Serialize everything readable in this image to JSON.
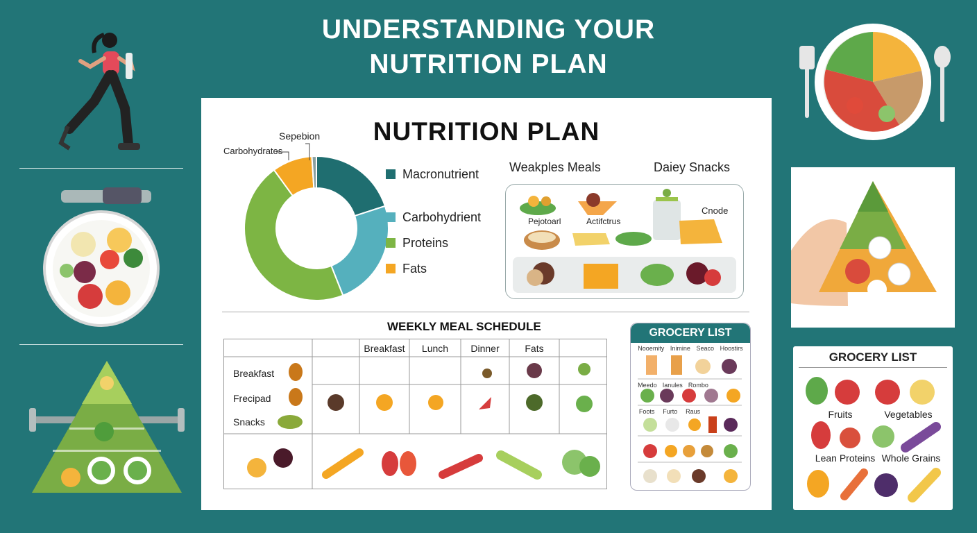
{
  "page": {
    "title_line1": "UNDERSTANDING YOUR",
    "title_line2": "NUTRITION PLAN"
  },
  "board": {
    "title": "NUTRITION PLAN",
    "donut_labels": {
      "top": "Sepebion",
      "left": "Carbohydrates"
    },
    "legend": [
      {
        "label": "Macronutrient",
        "color": "#1f6e70"
      },
      {
        "label": "Carbohydrient",
        "color": "#55b0bd"
      },
      {
        "label": "Proteins",
        "color": "#7db544"
      },
      {
        "label": "Fats",
        "color": "#f4a623"
      }
    ],
    "meals_heading_left": "Weakples Meals",
    "meals_heading_right": "Daiey Snacks",
    "meal_captions": {
      "a": "Pejotoarl",
      "b": "Actifctrus",
      "c": "Cnode"
    },
    "schedule": {
      "title": "WEEKLY MEAL SCHEDULE",
      "columns": [
        "",
        "Breakfast",
        "Lunch",
        "Dinner",
        "Fats",
        ""
      ],
      "rows": [
        "Breakfast",
        "Frecipad",
        "Snacks"
      ]
    },
    "grocery_mini": {
      "title": "GROCERY LIST",
      "row_captions": [
        [
          "Nooemity",
          "Inimine",
          "Seaco",
          "Hoostirs"
        ],
        [
          "Meedo",
          "Ianules",
          "Rombo"
        ],
        [
          "Foots",
          "Furto",
          "Raus"
        ]
      ]
    }
  },
  "right_panel": {
    "grocery_title": "GROCERY LIST",
    "labels": [
      "Fruits",
      "Vegetables",
      "Lean Proteins",
      "Whole Grains"
    ]
  },
  "colors": {
    "background": "#227577",
    "dark_teal": "#1f6e70",
    "light_teal": "#55b0bd",
    "green": "#7db544",
    "orange": "#f4a623"
  },
  "chart_data": {
    "type": "pie",
    "categories": [
      "Macronutrient",
      "Carbohydrient",
      "Proteins",
      "Fats",
      "Sepebion"
    ],
    "values": [
      20,
      24,
      46,
      9,
      1
    ]
  }
}
